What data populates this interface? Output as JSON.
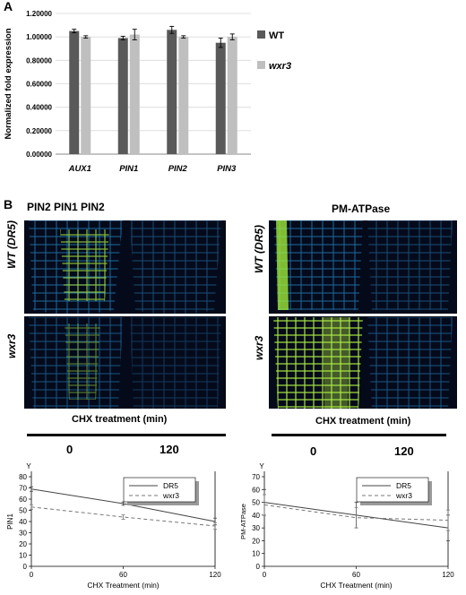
{
  "panel_a": {
    "letter": "A",
    "legend": [
      {
        "label": "WT",
        "color": "#595959"
      },
      {
        "label": "wxr3",
        "color": "#bfbfbf"
      }
    ]
  },
  "panel_b": {
    "letter": "B",
    "left_title": "PIN2 PIN1 PIN2",
    "right_title": "PM-ATPase",
    "row_labels": [
      "WT (DR5)",
      "wxr3"
    ],
    "treatment_label": "CHX treatment (min)",
    "timepoints": [
      "0",
      "120"
    ]
  },
  "chart_data": [
    {
      "type": "bar",
      "categories": [
        "AUX1",
        "PIN1",
        "PIN2",
        "PIN3"
      ],
      "series": [
        {
          "name": "WT",
          "values": [
            1.05,
            0.99,
            1.06,
            0.95
          ],
          "errors": [
            0.015,
            0.015,
            0.03,
            0.04
          ],
          "color": "#595959"
        },
        {
          "name": "wxr3",
          "values": [
            1.0,
            1.02,
            1.0,
            1.0
          ],
          "errors": [
            0.01,
            0.045,
            0.01,
            0.025
          ],
          "color": "#bfbfbf"
        }
      ],
      "ylabel": "Normalized fold expression",
      "ylim": [
        0,
        1.2
      ],
      "yticks": [
        "0.00000",
        "0.20000",
        "0.40000",
        "0.60000",
        "0.80000",
        "1.00000",
        "1.20000"
      ],
      "grid": true
    },
    {
      "type": "line",
      "x": [
        0,
        60,
        120
      ],
      "series": [
        {
          "name": "DR5",
          "values": [
            69,
            56,
            40
          ],
          "errors": [
            2,
            1.5,
            3
          ],
          "style": "solid"
        },
        {
          "name": "wxr3",
          "values": [
            53,
            44,
            36
          ],
          "errors": [
            2,
            2,
            3
          ],
          "style": "dashed"
        }
      ],
      "top_label": "Y",
      "ylabel": "PIN1",
      "xlabel": "CHX Treatment (min)",
      "ylim": [
        0,
        80
      ],
      "yticks": [
        0,
        10,
        20,
        30,
        40,
        50,
        60,
        70,
        80
      ],
      "xticks": [
        0,
        60,
        120
      ]
    },
    {
      "type": "line",
      "x": [
        0,
        60,
        120
      ],
      "series": [
        {
          "name": "DR5",
          "values": [
            50,
            40,
            30
          ],
          "errors": [
            10,
            10,
            10
          ],
          "style": "solid"
        },
        {
          "name": "wxr3",
          "values": [
            48,
            38,
            36
          ],
          "errors": [
            8,
            8,
            8
          ],
          "style": "dashed"
        }
      ],
      "top_label": "Y",
      "ylabel": "PM-ATPase",
      "xlabel": "CHX Treatment (min)",
      "ylim": [
        0,
        70
      ],
      "yticks": [
        0,
        10,
        20,
        30,
        40,
        50,
        60,
        70
      ],
      "xticks": [
        0,
        60,
        120
      ]
    }
  ]
}
